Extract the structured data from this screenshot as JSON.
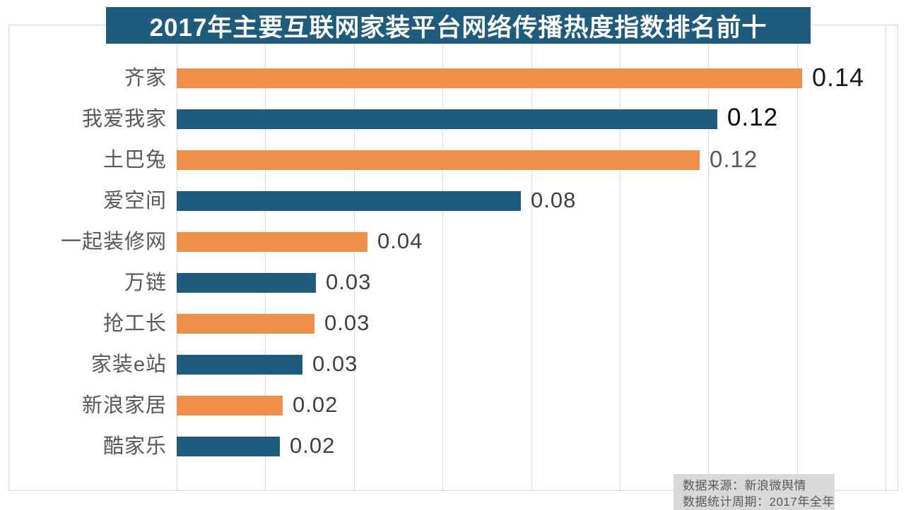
{
  "title": {
    "text": "2017年主要互联网家装平台网络传播热度指数排名前十",
    "bg_color": "#1F5B7C",
    "text_color": "#FFFFFF"
  },
  "source_box": {
    "line1": "数据来源：新浪微舆情",
    "line2": "数据统计周期：2017年全年",
    "bg_color": "#D9D9D9",
    "text_color": "#595959"
  },
  "colors": {
    "bar_orange": "#EF8F4A",
    "bar_blue": "#1F5B7C",
    "gridline": "#DCDCDC",
    "frame_border": "#D9D9D9",
    "category_label": "#595959"
  },
  "chart_data": {
    "type": "bar",
    "orientation": "horizontal",
    "title": "2017年主要互联网家装平台网络传播热度指数排名前十",
    "categories": [
      "齐家",
      "我爱我家",
      "土巴兔",
      "爱空间",
      "一起装修网",
      "万链",
      "抢工长",
      "家装e站",
      "新浪家居",
      "酷家乐"
    ],
    "values": [
      0.14,
      0.12,
      0.12,
      0.08,
      0.04,
      0.03,
      0.03,
      0.03,
      0.02,
      0.02
    ],
    "value_labels": [
      "0.14",
      "0.12",
      "0.12",
      "0.08",
      "0.04",
      "0.03",
      "0.03",
      "0.03",
      "0.02",
      "0.02"
    ],
    "bar_values_precise": [
      0.1412,
      0.122,
      0.118,
      0.0777,
      0.0431,
      0.0314,
      0.0311,
      0.0284,
      0.0239,
      0.0233
    ],
    "bar_colors": [
      "#EF8F4A",
      "#1F5B7C",
      "#EF8F4A",
      "#1F5B7C",
      "#EF8F4A",
      "#1F5B7C",
      "#EF8F4A",
      "#1F5B7C",
      "#EF8F4A",
      "#1F5B7C"
    ],
    "value_label_colors": [
      "#1A1A1A",
      "#000000",
      "#595959",
      "#404040",
      "#404040",
      "#404040",
      "#404040",
      "#404040",
      "#404040",
      "#404040"
    ],
    "value_label_sizes": [
      36,
      35,
      33,
      31,
      31,
      31,
      31,
      31,
      31,
      31
    ],
    "xlabel": "",
    "ylabel": "",
    "xlim": [
      0,
      0.163
    ],
    "grid_step": 0.02,
    "grid": true,
    "legend": false
  }
}
